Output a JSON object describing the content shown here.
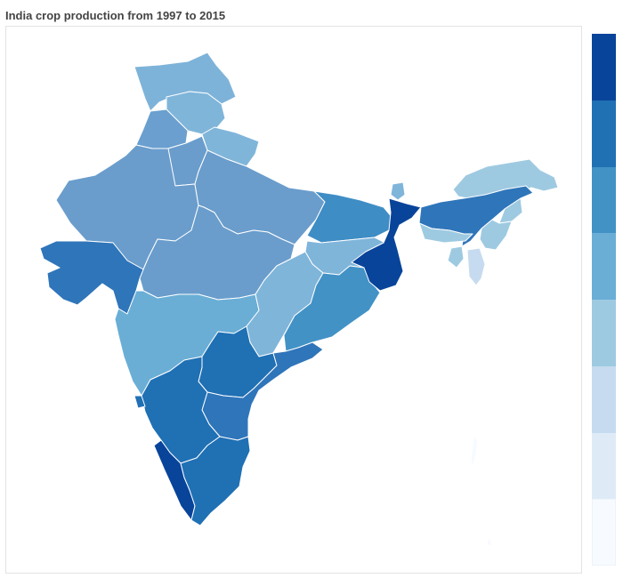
{
  "title": "India crop production from 1997 to 2015",
  "legend_colors": [
    "#08449a",
    "#2070b4",
    "#4292c6",
    "#6aaed6",
    "#9ecae1",
    "#c6dbef",
    "#deebf7",
    "#f7fbff"
  ],
  "regions": [
    {
      "id": "jammu-kashmir",
      "color": "#7eb3d9"
    },
    {
      "id": "himachal",
      "color": "#80b5da"
    },
    {
      "id": "punjab",
      "color": "#6a9fcf"
    },
    {
      "id": "uttarakhand",
      "color": "#80b5da"
    },
    {
      "id": "haryana",
      "color": "#6a9dcc"
    },
    {
      "id": "rajasthan",
      "color": "#6a9dcc"
    },
    {
      "id": "uttar-pradesh",
      "color": "#6a9dcc"
    },
    {
      "id": "madhya-pradesh",
      "color": "#6a9dcc"
    },
    {
      "id": "gujarat",
      "color": "#2f75ba"
    },
    {
      "id": "maharashtra",
      "color": "#6aaed6"
    },
    {
      "id": "bihar",
      "color": "#3f8dc5"
    },
    {
      "id": "jharkhand",
      "color": "#80b5da"
    },
    {
      "id": "chhattisgarh",
      "color": "#80b5da"
    },
    {
      "id": "odisha",
      "color": "#4292c6"
    },
    {
      "id": "west-bengal",
      "color": "#08449a"
    },
    {
      "id": "sikkim",
      "color": "#80b5da"
    },
    {
      "id": "telangana",
      "color": "#2070b4"
    },
    {
      "id": "andhra-pradesh",
      "color": "#2f75ba"
    },
    {
      "id": "karnataka",
      "color": "#2070b4"
    },
    {
      "id": "goa",
      "color": "#2070b4"
    },
    {
      "id": "kerala",
      "color": "#08449a"
    },
    {
      "id": "tamil-nadu",
      "color": "#2070b4"
    },
    {
      "id": "arunachal",
      "color": "#9ecae1"
    },
    {
      "id": "assam",
      "color": "#2f75ba"
    },
    {
      "id": "nagaland",
      "color": "#9ecae1"
    },
    {
      "id": "meghalaya",
      "color": "#9ecae1"
    },
    {
      "id": "manipur",
      "color": "#9ecae1"
    },
    {
      "id": "tripura",
      "color": "#9ecae1"
    },
    {
      "id": "mizoram",
      "color": "#c6dbef"
    },
    {
      "id": "andaman-nicobar",
      "color": "#f7fbff"
    }
  ]
}
